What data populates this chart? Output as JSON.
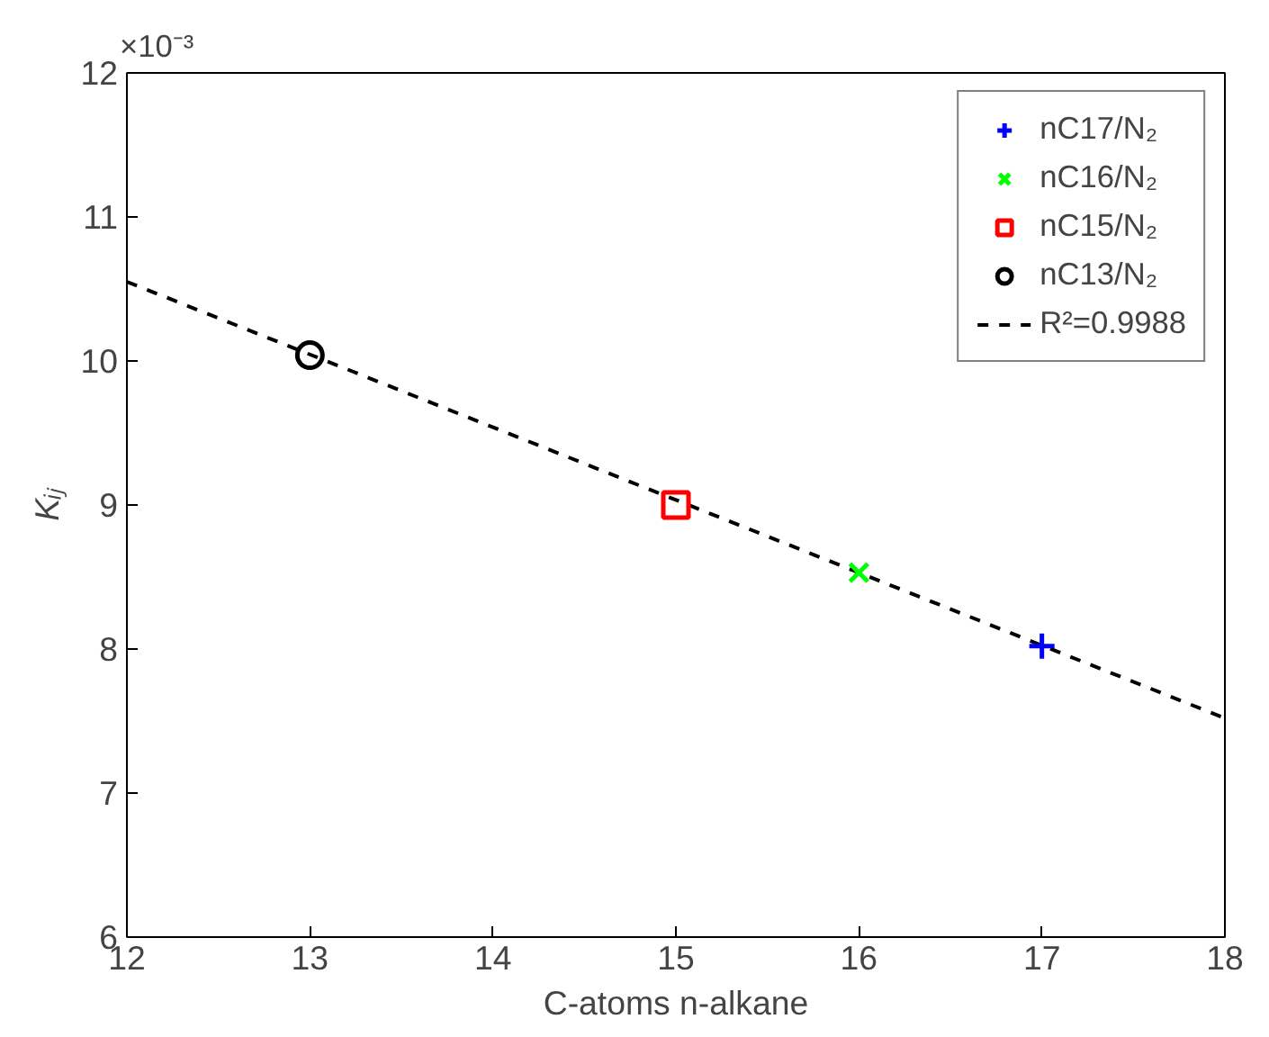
{
  "chart_data": {
    "type": "scatter",
    "xlabel": "C-atoms n-alkane",
    "ylabel": "Kᵢⱼ",
    "xlim": [
      12,
      18
    ],
    "xticks": [
      12,
      13,
      14,
      15,
      16,
      17,
      18
    ],
    "ylim": [
      6,
      12
    ],
    "yticks": [
      6,
      7,
      8,
      9,
      10,
      11,
      12
    ],
    "annotations": [
      "×10⁻³"
    ],
    "grid": false,
    "legend": "top right",
    "series": [
      {
        "name": "nC17/N₂",
        "color": "#0000ff",
        "marker": "cross",
        "x": [
          17
        ],
        "values": [
          8.02
        ]
      },
      {
        "name": "nC16/N₂",
        "color": "#00ff00",
        "marker": "x",
        "x": [
          16
        ],
        "values": [
          8.53
        ]
      },
      {
        "name": "nC15/N₂",
        "color": "#ff0000",
        "marker": "square",
        "x": [
          15
        ],
        "values": [
          9.0
        ]
      },
      {
        "name": "nC13/N₂",
        "color": "#000000",
        "marker": "circle",
        "x": [
          13
        ],
        "values": [
          10.04
        ]
      },
      {
        "name": "R²=0.9988",
        "type": "line",
        "color": "#000000",
        "marker": "none",
        "line_style": "dashed",
        "x": [
          12,
          18
        ],
        "values": [
          10.55,
          7.52
        ]
      }
    ]
  }
}
